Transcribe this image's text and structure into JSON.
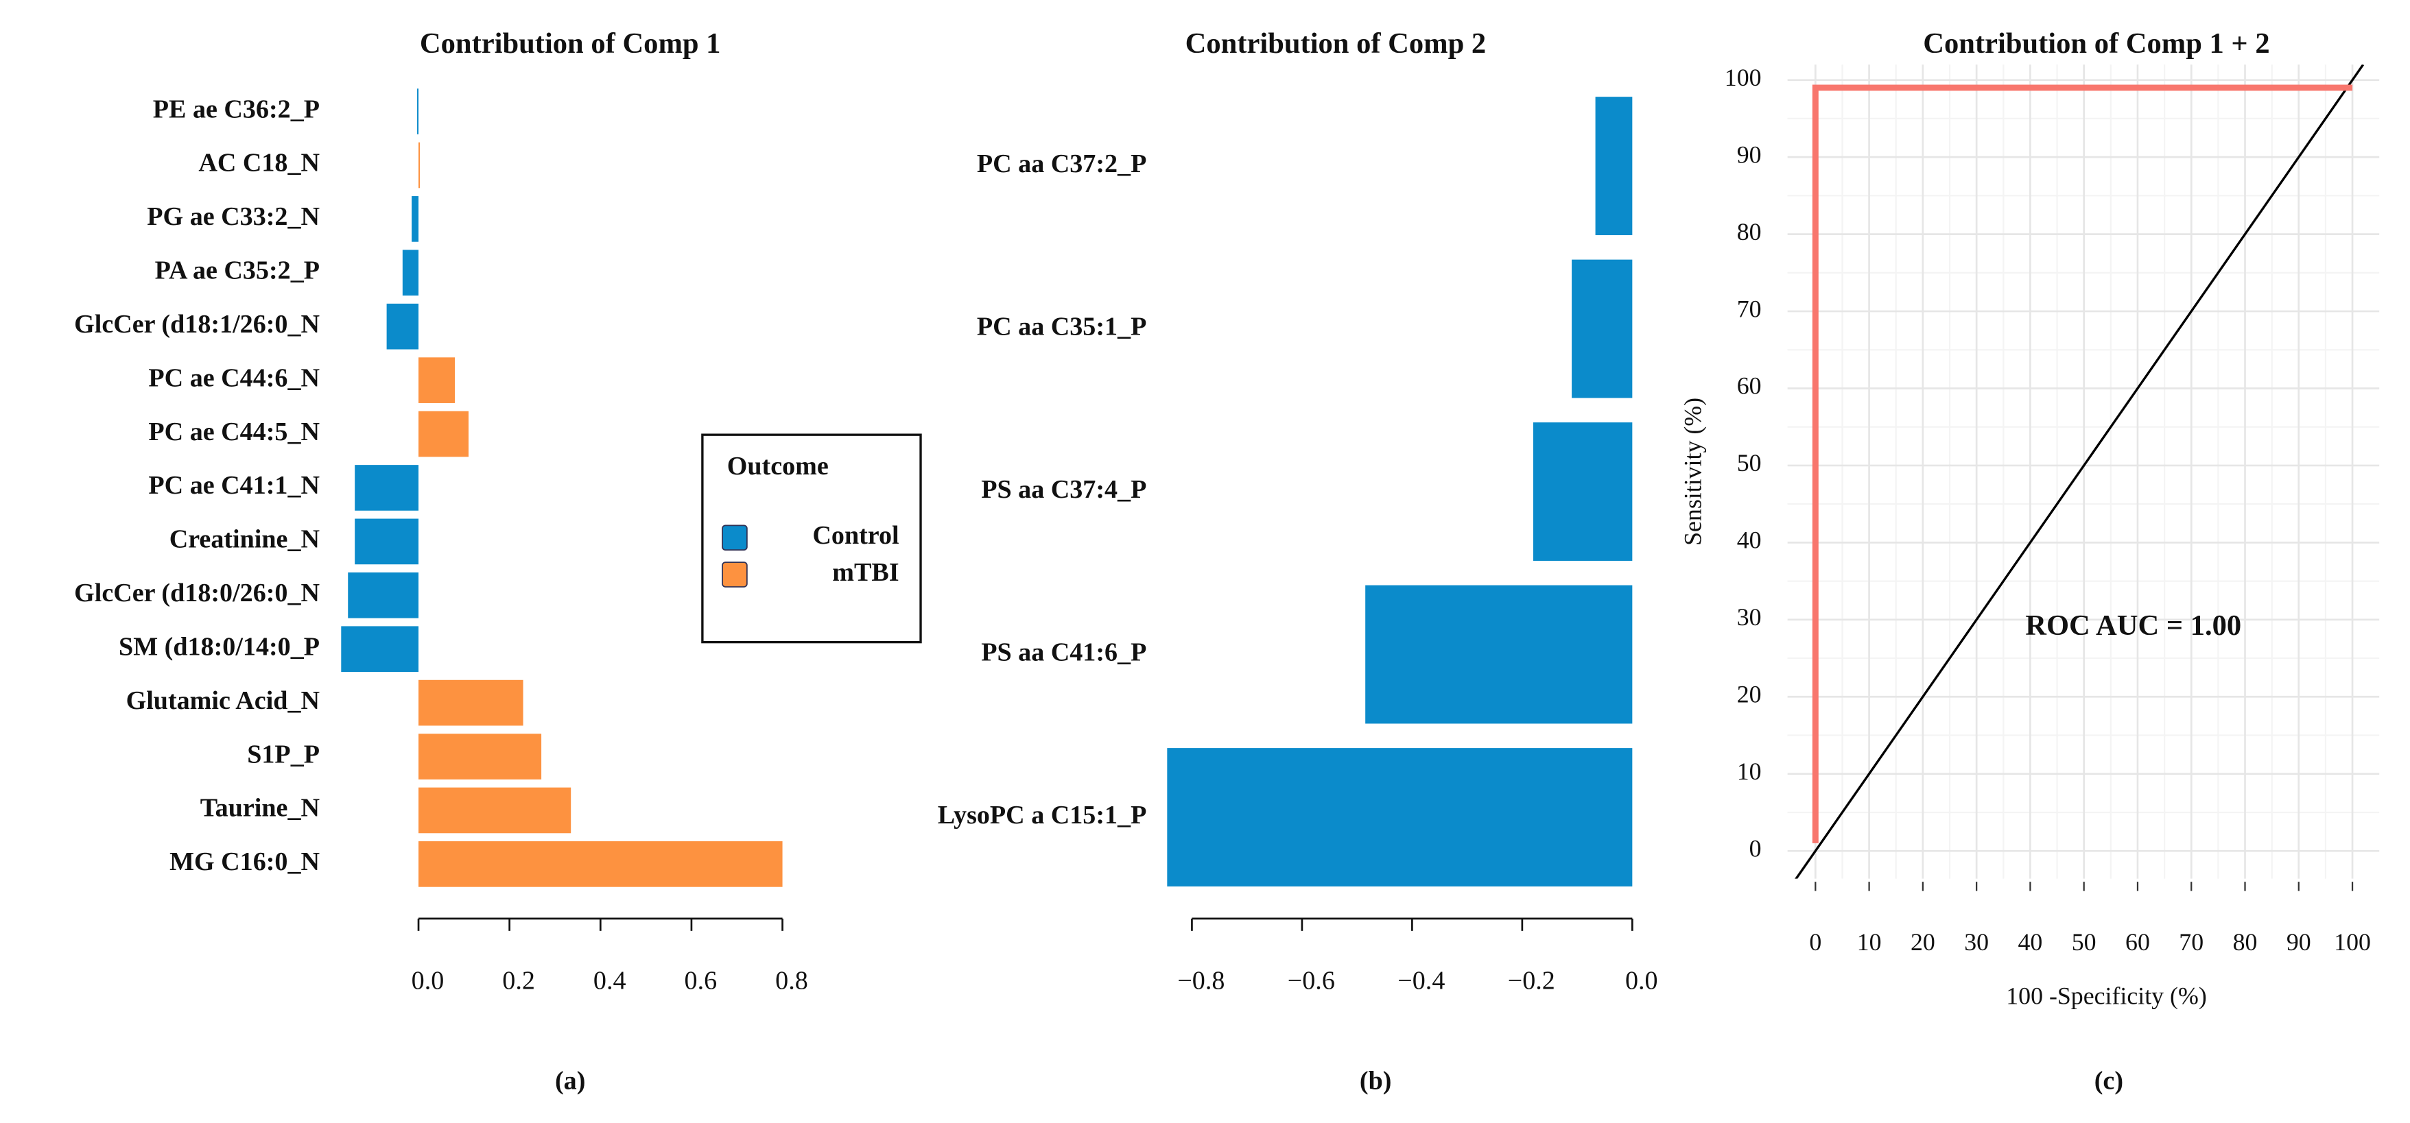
{
  "chart_data": [
    {
      "type": "barh",
      "title": "Contribution of Comp 1",
      "caption": "(a)",
      "categories": [
        "PE ae C36:2_P",
        "AC C18_N",
        "PG ae C33:2_N",
        "PA ae C35:2_P",
        "GlcCer (d18:1/26:0_N",
        "PC ae C44:6_N",
        "PC ae C44:5_N",
        "PC ae C41:1_N",
        "Creatinine_N",
        "GlcCer (d18:0/26:0_N",
        "SM (d18:0/14:0_P",
        "Glutamic Acid_N",
        "S1P_P",
        "Taurine_N",
        "MG C16:0_N"
      ],
      "series": [
        {
          "name": "Control",
          "color": "#0b8bcb",
          "values": [
            -0.003,
            null,
            -0.015,
            -0.035,
            -0.07,
            null,
            null,
            -0.14,
            -0.14,
            -0.155,
            -0.17,
            null,
            null,
            null,
            null
          ]
        },
        {
          "name": "mTBI",
          "color": "#fd9240",
          "values": [
            null,
            0.003,
            null,
            null,
            null,
            0.08,
            0.11,
            null,
            null,
            null,
            null,
            0.23,
            0.27,
            0.335,
            0.8
          ]
        }
      ],
      "legend_title": "Outcome",
      "xlim": [
        -0.18,
        0.82
      ],
      "xticks": [
        {
          "value": 0,
          "label": "0.0"
        },
        0.2,
        0.4,
        0.6,
        0.8
      ]
    },
    {
      "type": "barh",
      "title": "Contribution of Comp 2",
      "caption": "(b)",
      "categories": [
        "PC aa C37:2_P",
        "PC aa C35:1_P",
        "PS aa C37:4_P",
        "PS aa C41:6_P",
        "LysoPC a C15:1_P"
      ],
      "values": [
        -0.067,
        -0.11,
        -0.18,
        -0.485,
        -0.845
      ],
      "color": "#0b8bcb",
      "xlim": [
        -0.86,
        0
      ],
      "xticks": [
        {
          "value": -0.8,
          "label": "−0.8"
        },
        {
          "value": -0.6,
          "label": "−0.6"
        },
        {
          "value": -0.4,
          "label": "−0.4"
        },
        {
          "value": -0.2,
          "label": "−0.2"
        },
        {
          "value": 0,
          "label": "0.0"
        }
      ]
    },
    {
      "type": "line",
      "title": "Contribution of Comp 1 + 2",
      "caption": "(c)",
      "x": [
        0,
        0,
        100
      ],
      "series": [
        {
          "name": "ROC",
          "color": "#f8766d",
          "values": [
            1,
            99,
            99
          ]
        }
      ],
      "annotation": "ROC AUC = 1.00",
      "xlabel": "100 -Specificity (%)",
      "ylabel": "Sensitivity (%)",
      "xlim": [
        -5.2,
        105
      ],
      "ylim": [
        -3.6,
        102
      ],
      "xticks": [
        0,
        10,
        20,
        30,
        40,
        50,
        60,
        70,
        80,
        90,
        100
      ],
      "yticks": [
        0,
        10,
        20,
        30,
        40,
        50,
        60,
        70,
        80,
        90,
        100
      ],
      "grid": true
    }
  ]
}
